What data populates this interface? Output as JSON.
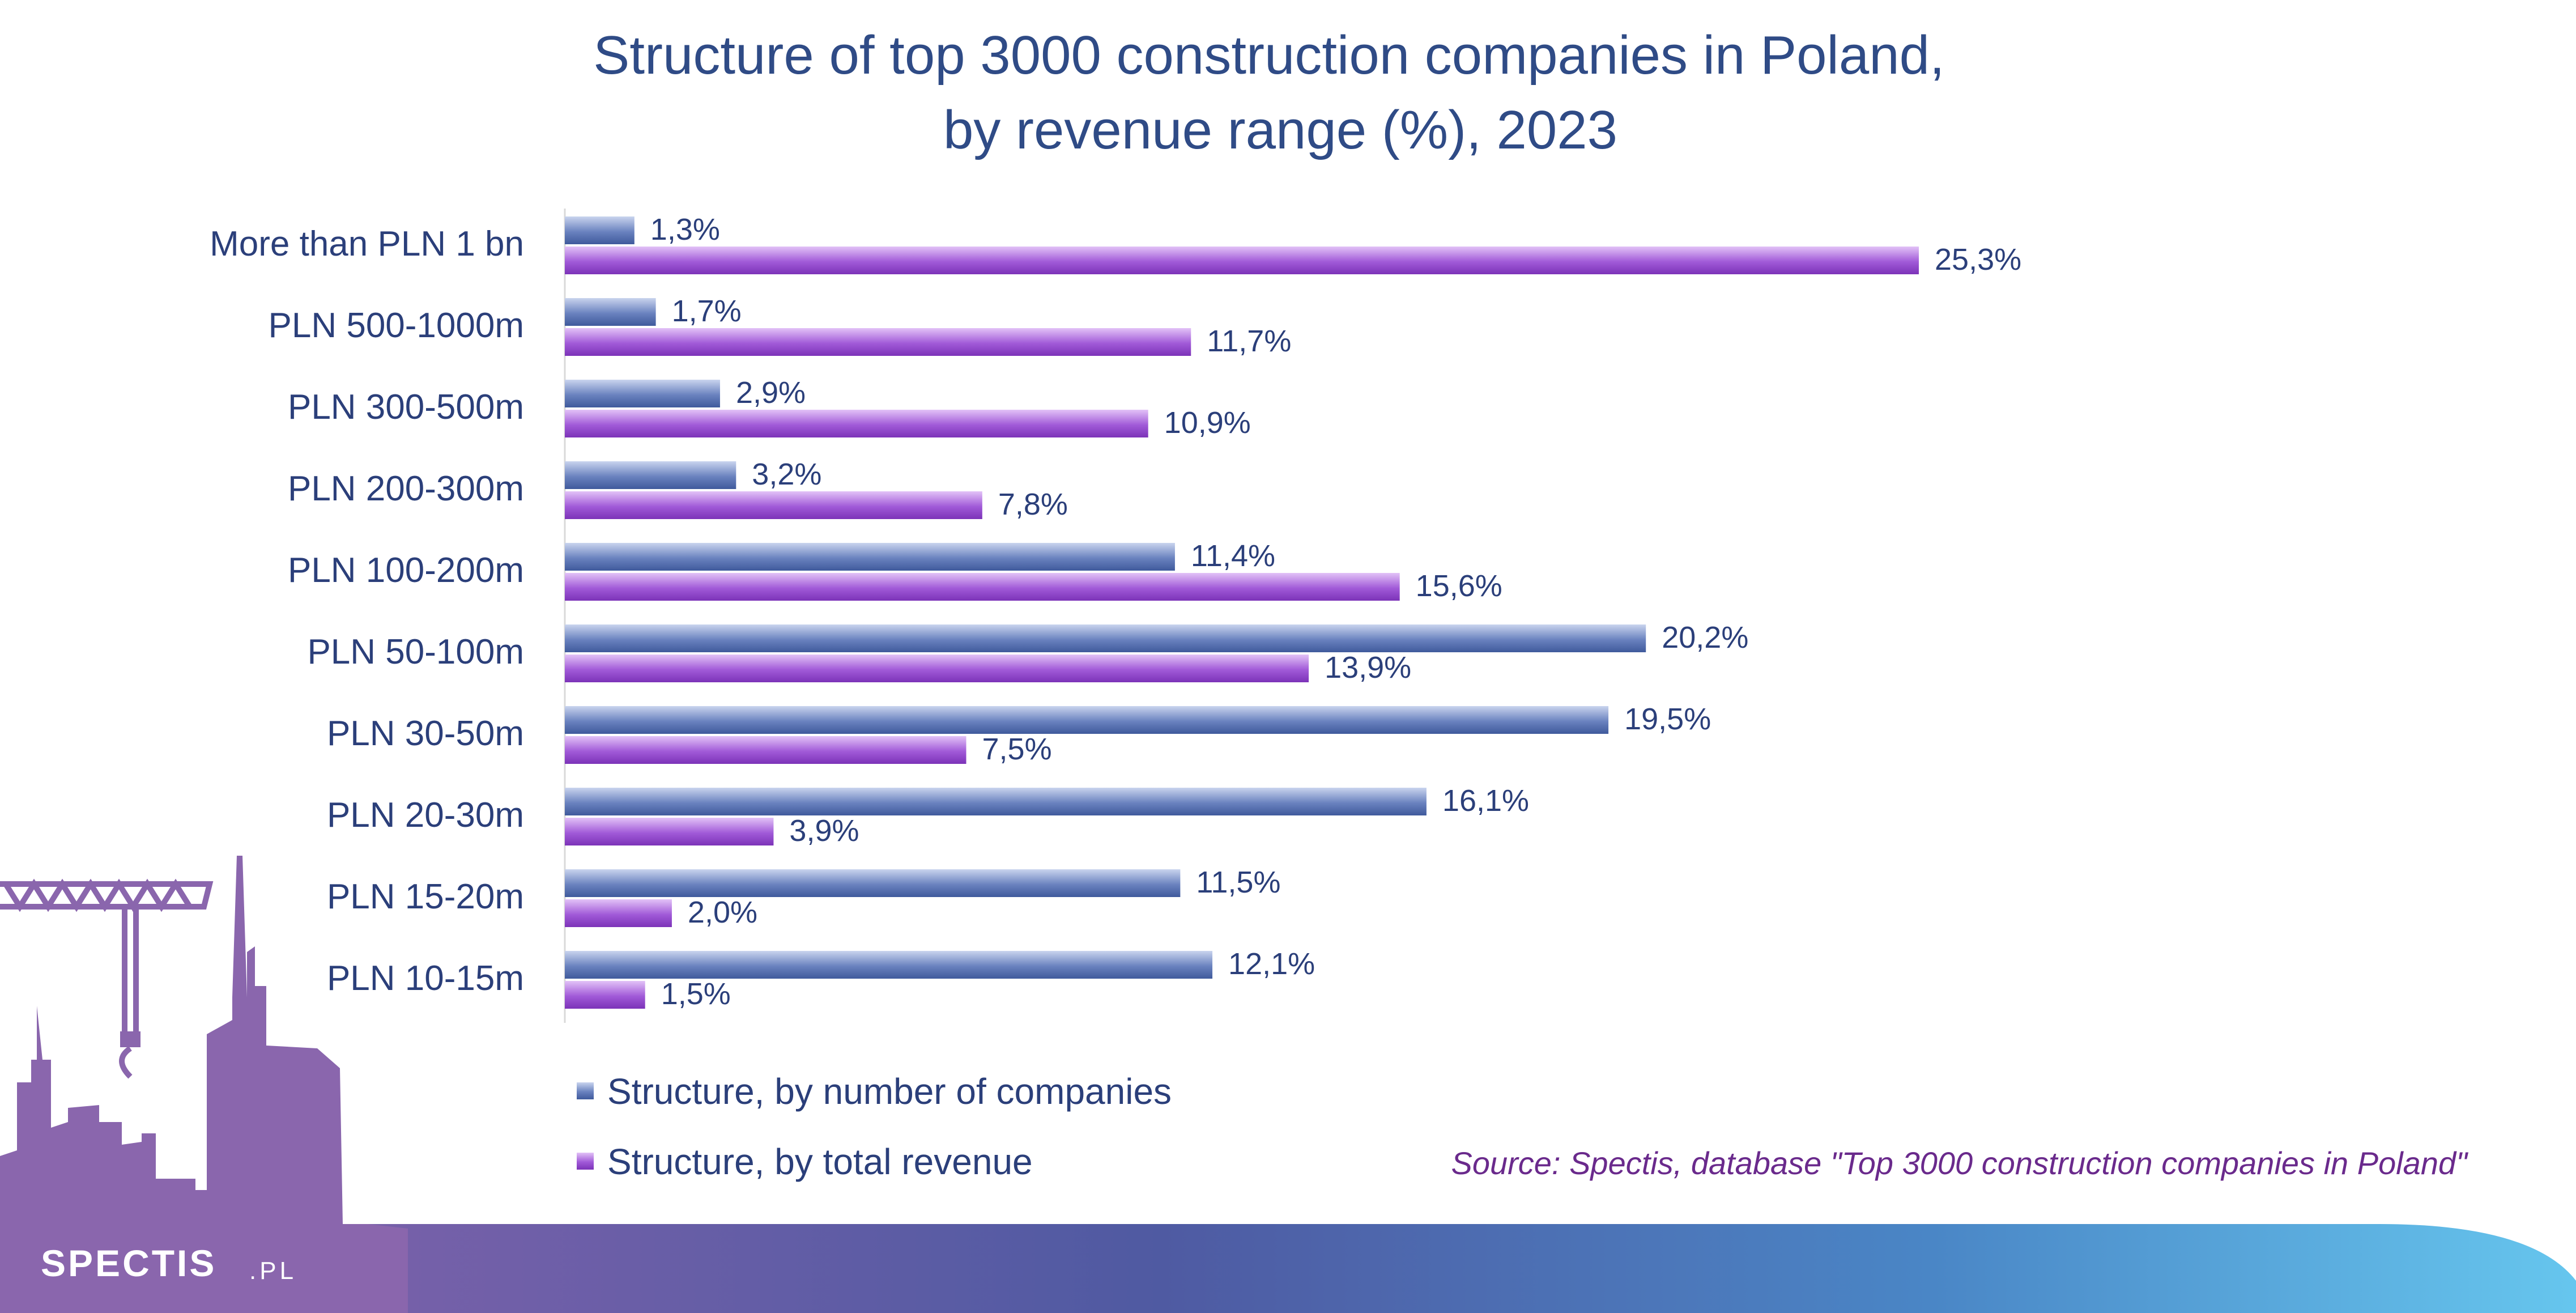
{
  "chart_data": {
    "type": "bar",
    "orientation": "horizontal",
    "title": "Structure of top 3000 construction companies in Poland, by revenue range (%), 2023",
    "title_lines": [
      "Structure of top 3000 construction companies in Poland,",
      "by revenue range (%), 2023"
    ],
    "categories": [
      "More than PLN 1 bn",
      "PLN 500-1000m",
      "PLN 300-500m",
      "PLN 200-300m",
      "PLN 100-200m",
      "PLN 50-100m",
      "PLN 30-50m",
      "PLN 20-30m",
      "PLN 15-20m",
      "PLN 10-15m"
    ],
    "series": [
      {
        "name": "Structure, by number of companies",
        "color": "#4a64a6",
        "values": [
          1.3,
          1.7,
          2.9,
          3.2,
          11.4,
          20.2,
          19.5,
          16.1,
          11.5,
          12.1
        ],
        "labels": [
          "1,3%",
          "1,7%",
          "2,9%",
          "3,2%",
          "11,4%",
          "20,2%",
          "19,5%",
          "16,1%",
          "11,5%",
          "12,1%"
        ]
      },
      {
        "name": "Structure, by total revenue",
        "color": "#8a3fc4",
        "values": [
          25.3,
          11.7,
          10.9,
          7.8,
          15.6,
          13.9,
          7.5,
          3.9,
          2.0,
          1.5
        ],
        "labels": [
          "25,3%",
          "11,7%",
          "10,9%",
          "7,8%",
          "15,6%",
          "13,9%",
          "7,5%",
          "3,9%",
          "2,0%",
          "1,5%"
        ]
      }
    ],
    "xlim": [
      0,
      30
    ],
    "xlabel": "",
    "ylabel": "",
    "grid": false,
    "legend_position": "bottom-left"
  },
  "source": "Source: Spectis, database \"Top 3000 construction companies in Poland\"",
  "logo": {
    "main": "SPECTIS",
    "tld": ".PL"
  }
}
